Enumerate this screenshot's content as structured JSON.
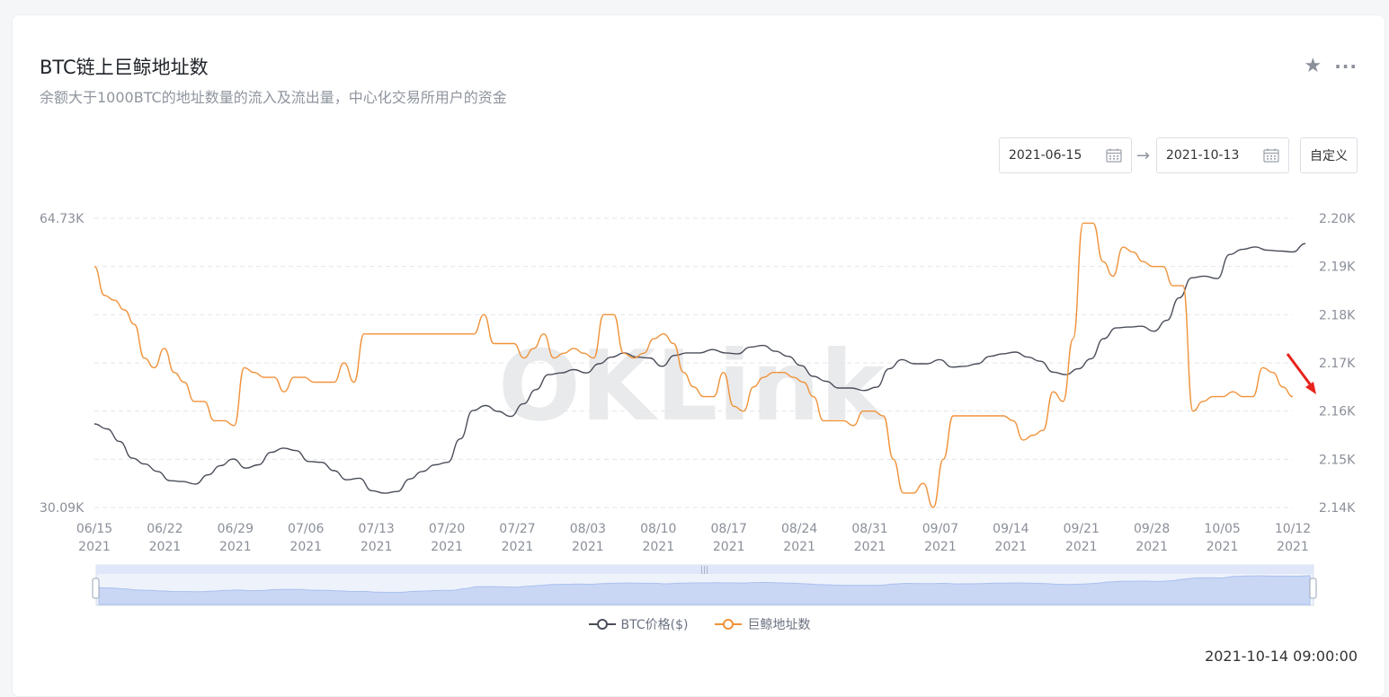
{
  "header": {
    "title": "BTC链上巨鲸地址数",
    "subtitle": "余额大于1000BTC的地址数量的流入及流出量，中心化交易所用户的资金"
  },
  "controls": {
    "start_date": "2021-06-15",
    "arrow": "→",
    "end_date": "2021-10-13",
    "custom_label": "自定义"
  },
  "watermark": "OKLink",
  "timestamp": "2021-10-14 09:00:00",
  "colors": {
    "btc": "#4a4e5a",
    "whale": "#f0923a",
    "annotation": "#e8231b"
  },
  "chart_data": {
    "type": "line",
    "x_labels": [
      [
        "06/15",
        "2021"
      ],
      [
        "06/22",
        "2021"
      ],
      [
        "06/29",
        "2021"
      ],
      [
        "07/06",
        "2021"
      ],
      [
        "07/13",
        "2021"
      ],
      [
        "07/20",
        "2021"
      ],
      [
        "07/27",
        "2021"
      ],
      [
        "08/03",
        "2021"
      ],
      [
        "08/10",
        "2021"
      ],
      [
        "08/17",
        "2021"
      ],
      [
        "08/24",
        "2021"
      ],
      [
        "08/31",
        "2021"
      ],
      [
        "09/07",
        "2021"
      ],
      [
        "09/14",
        "2021"
      ],
      [
        "09/21",
        "2021"
      ],
      [
        "09/28",
        "2021"
      ],
      [
        "10/05",
        "2021"
      ],
      [
        "10/12",
        "2021"
      ]
    ],
    "x_range": [
      "2021-06-15",
      "2021-10-13"
    ],
    "left_axis": {
      "ticks": [
        "64.73K",
        "30.09K"
      ],
      "range": [
        30.09,
        64.73
      ]
    },
    "right_axis": {
      "ticks": [
        "2.20K",
        "2.19K",
        "2.18K",
        "2.17K",
        "2.16K",
        "2.15K",
        "2.14K"
      ],
      "range": [
        2.14,
        2.2
      ]
    },
    "grid": true,
    "legend_position": "bottom",
    "series": [
      {
        "name": "BTC价格($)",
        "axis": "left",
        "values": [
          40.1,
          39.5,
          38.0,
          36.0,
          35.3,
          34.4,
          33.3,
          33.2,
          32.9,
          34.0,
          35.1,
          35.9,
          34.8,
          35.2,
          36.7,
          37.2,
          36.9,
          35.6,
          35.5,
          34.5,
          33.4,
          33.6,
          32.1,
          31.8,
          32.0,
          33.5,
          34.4,
          35.2,
          35.5,
          38.3,
          41.7,
          42.3,
          41.6,
          41.0,
          42.5,
          44.2,
          46.0,
          46.2,
          46.6,
          46.2,
          47.3,
          48.1,
          48.6,
          48.1,
          48.0,
          47.0,
          48.3,
          48.6,
          48.6,
          49.0,
          48.6,
          48.5,
          49.3,
          49.5,
          48.8,
          48.2,
          47.1,
          45.8,
          45.2,
          44.4,
          44.4,
          44.1,
          44.5,
          46.7,
          47.8,
          47.3,
          47.3,
          47.8,
          46.9,
          47.0,
          47.3,
          48.2,
          48.5,
          48.7,
          48.1,
          47.6,
          46.3,
          46.0,
          46.7,
          47.9,
          50.3,
          51.6,
          51.7,
          51.8,
          51.2,
          52.5,
          55.2,
          57.6,
          57.8,
          57.5,
          60.4,
          61.0,
          61.3,
          60.9,
          60.8,
          60.7,
          61.7
        ],
        "fixed_points": "estimated by inspection from the rendered chart"
      },
      {
        "name": "巨鲸地址数",
        "axis": "right",
        "values": [
          2.19,
          2.184,
          2.183,
          2.181,
          2.178,
          2.171,
          2.169,
          2.173,
          2.168,
          2.166,
          2.162,
          2.162,
          2.158,
          2.158,
          2.157,
          2.169,
          2.168,
          2.167,
          2.167,
          2.164,
          2.167,
          2.167,
          2.166,
          2.166,
          2.166,
          2.17,
          2.166,
          2.176,
          2.176,
          2.176,
          2.176,
          2.176,
          2.176,
          2.176,
          2.176,
          2.176,
          2.176,
          2.176,
          2.176,
          2.18,
          2.174,
          2.174,
          2.174,
          2.171,
          2.173,
          2.176,
          2.171,
          2.172,
          2.173,
          2.172,
          2.171,
          2.18,
          2.18,
          2.172,
          2.171,
          2.172,
          2.175,
          2.176,
          2.174,
          2.168,
          2.165,
          2.163,
          2.163,
          2.168,
          2.161,
          2.16,
          2.165,
          2.167,
          2.168,
          2.168,
          2.167,
          2.166,
          2.163,
          2.158,
          2.158,
          2.158,
          2.157,
          2.16,
          2.16,
          2.159,
          2.15,
          2.143,
          2.143,
          2.145,
          2.14,
          2.15,
          2.159,
          2.159,
          2.159,
          2.159,
          2.159,
          2.159,
          2.158,
          2.154,
          2.155,
          2.156,
          2.164,
          2.162,
          2.175,
          2.199,
          2.199,
          2.191,
          2.188,
          2.194,
          2.193,
          2.191,
          2.19,
          2.19,
          2.186,
          2.186,
          2.16,
          2.162,
          2.163,
          2.163,
          2.164,
          2.163,
          2.163,
          2.169,
          2.168,
          2.165,
          2.163
        ]
      }
    ]
  }
}
